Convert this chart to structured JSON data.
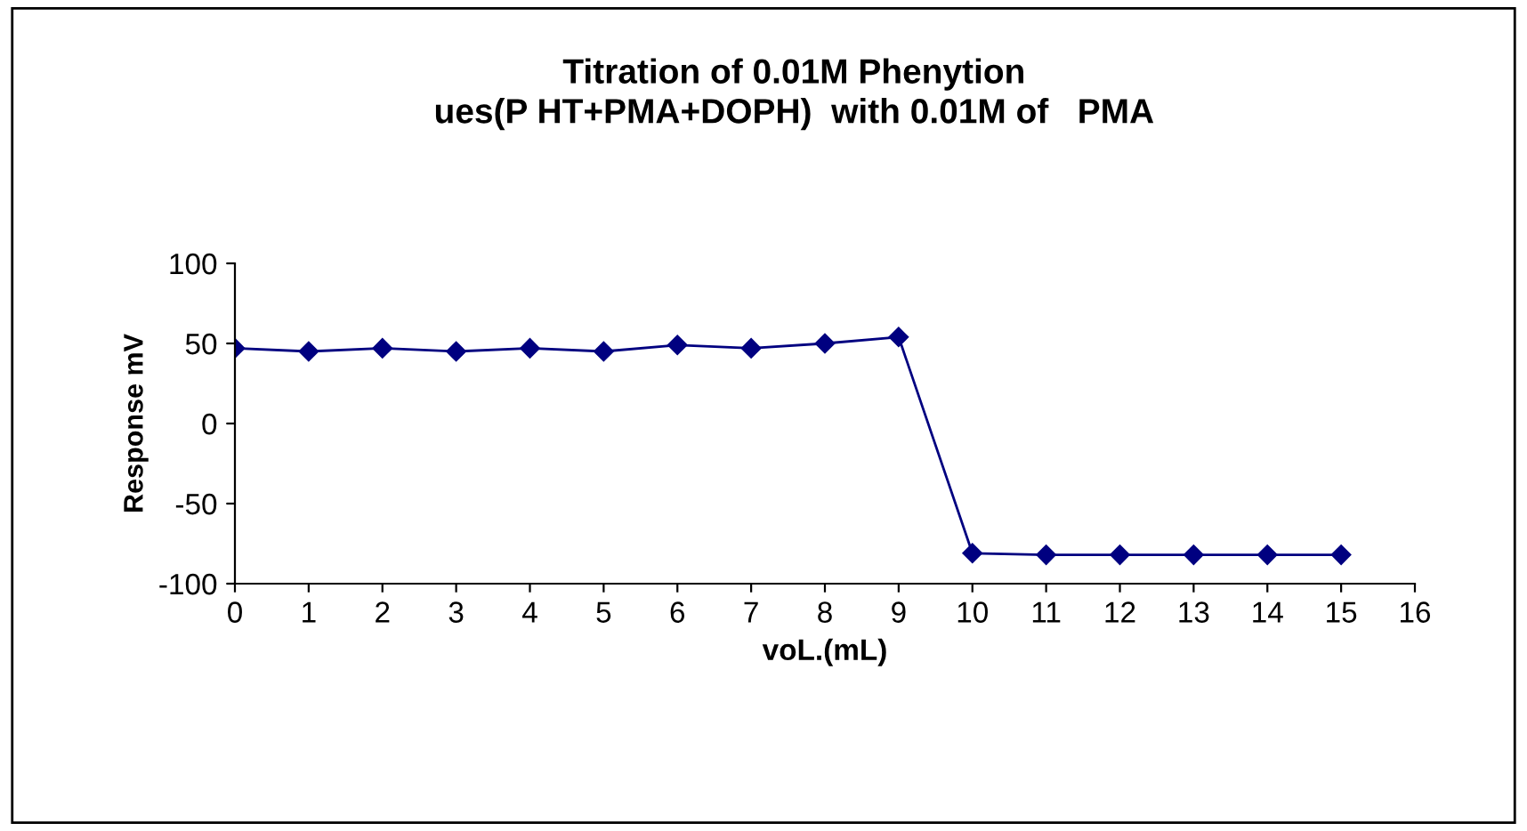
{
  "chart_data": {
    "type": "line",
    "title": "Titration of 0.01M Phenytion\nues(P HT+PMA+DOPH)  with 0.01M of   PMA",
    "xlabel": "voL.(mL)",
    "ylabel": "Response mV",
    "x": [
      0,
      1,
      2,
      3,
      4,
      5,
      6,
      7,
      8,
      9,
      10,
      11,
      12,
      13,
      14,
      15
    ],
    "series": [
      {
        "color": "#000080",
        "values": [
          47,
          45,
          47,
          45,
          47,
          45,
          49,
          47,
          50,
          54,
          -81,
          -82,
          -82,
          -82,
          -82,
          -82
        ]
      }
    ],
    "xlim": [
      0,
      16
    ],
    "xticks": [
      0,
      1,
      2,
      3,
      4,
      5,
      6,
      7,
      8,
      9,
      10,
      11,
      12,
      13,
      14,
      15,
      16
    ],
    "ylim": [
      -100,
      100
    ],
    "yticks": [
      -100,
      -50,
      0,
      50,
      100
    ],
    "grid": false,
    "legend": false,
    "marker": "diamond",
    "line_style": "solid"
  }
}
